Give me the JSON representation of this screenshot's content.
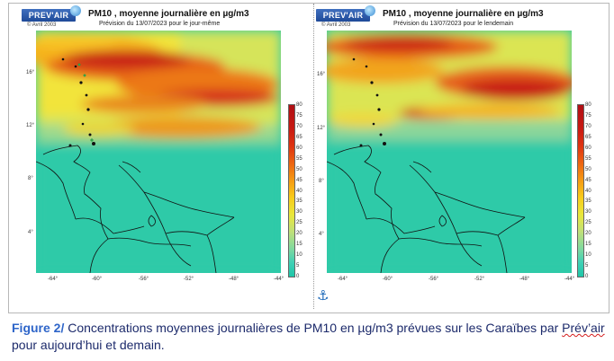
{
  "panels": [
    {
      "logo": "PREV'AIR",
      "copyright": "© Avril 2003",
      "title": "PM10 , moyenne journalière en µg/m3",
      "subtitle": "Prévision du 13/07/2023 pour le jour-même"
    },
    {
      "logo": "PREV'AIR",
      "copyright": "© Avril 2003",
      "title": "PM10 , moyenne journalière en µg/m3",
      "subtitle": "Prévision du 13/07/2023 pour le lendemain"
    }
  ],
  "lat_labels": [
    "16°",
    "12°",
    "8°",
    "4°"
  ],
  "lon_labels": [
    "-64°",
    "-60°",
    "-56°",
    "-52°",
    "-48°",
    "-44°"
  ],
  "colorbar_ticks": [
    "80",
    "75",
    "70",
    "65",
    "60",
    "55",
    "50",
    "45",
    "40",
    "35",
    "30",
    "25",
    "20",
    "15",
    "10",
    "5",
    "0"
  ],
  "colors": {
    "background_low": "#2fcaa8",
    "high": "#c81a13",
    "caption_text": "#1c2a6b",
    "figure_label": "#2e65c9"
  },
  "caption": {
    "label": "Figure 2/",
    "text_a": " Concentrations moyennes journalières de PM10 en µg/m3 prévues sur les Caraïbes par ",
    "link": "Prév’air",
    "text_b": " pour aujourd’hui et demain."
  },
  "icons": {
    "anchor": "anchor-icon"
  }
}
